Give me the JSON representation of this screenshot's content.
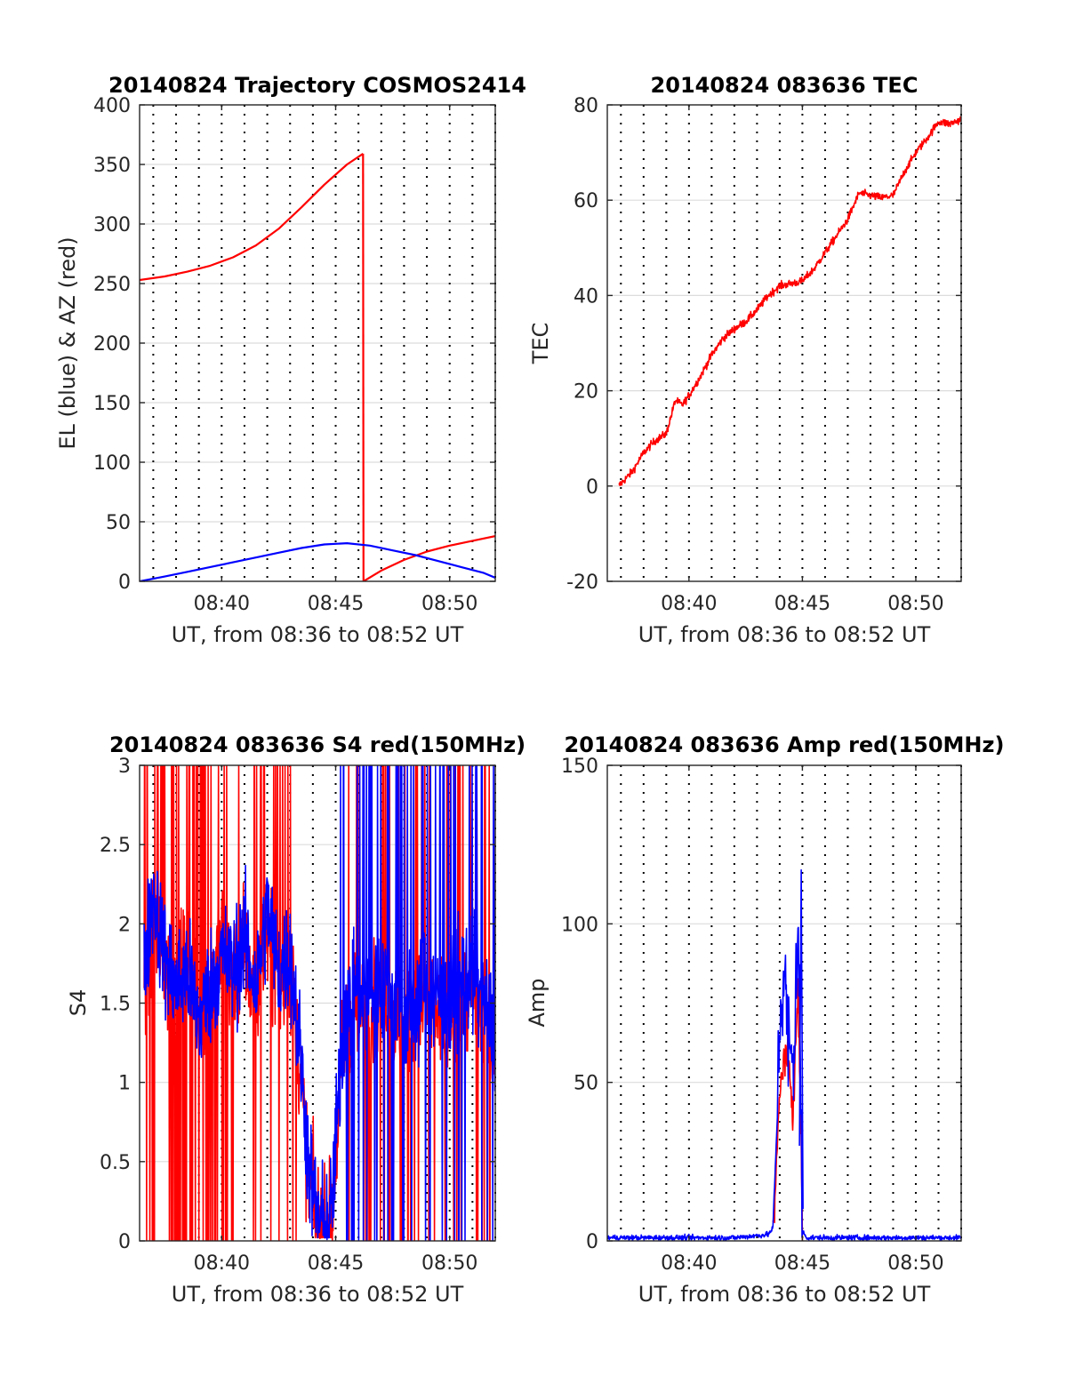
{
  "figure": {
    "background": "#ffffff"
  },
  "chart_data": [
    {
      "id": "trajectory",
      "type": "line",
      "title": "20140824 Trajectory COSMOS2414",
      "xlabel": "UT, from 08:36 to 08:52 UT",
      "ylabel": "EL (blue) & AZ (red)",
      "xlim_minutes": [
        516.4,
        532.0
      ],
      "ylim": [
        0,
        400
      ],
      "yticks": [
        0,
        50,
        100,
        150,
        200,
        250,
        300,
        350,
        400
      ],
      "yticklabels": [
        "0",
        "50",
        "100",
        "150",
        "200",
        "250",
        "300",
        "350",
        "400"
      ],
      "xticks_minutes": [
        520,
        525,
        530
      ],
      "xticklabels": [
        "08:40",
        "08:45",
        "08:50"
      ],
      "grid": true,
      "series": [
        {
          "color": "#ff0000",
          "style": "smooth",
          "x": [
            516.4,
            517.5,
            518.5,
            519.5,
            520.5,
            521.5,
            522.5,
            523.5,
            524.5,
            525.5,
            526.2
          ],
          "y": [
            253,
            256,
            260,
            265,
            272,
            282,
            296,
            314,
            333,
            350,
            359
          ]
        },
        {
          "color": "#ff0000",
          "style": "smooth",
          "x": [
            526.2,
            526.22
          ],
          "y": [
            359,
            0
          ]
        },
        {
          "color": "#ff0000",
          "style": "smooth",
          "x": [
            526.22,
            527,
            528,
            529,
            530,
            531,
            532
          ],
          "y": [
            0,
            9,
            18,
            25,
            30,
            34,
            38
          ]
        },
        {
          "color": "#0000ff",
          "style": "smooth",
          "x": [
            516.4,
            517.5,
            518.5,
            519.5,
            520.5,
            521.5,
            522.5,
            523.5,
            524.5,
            525.5,
            526.5,
            527.5,
            528.5,
            529.5,
            530.5,
            531.5,
            532
          ],
          "y": [
            0,
            4,
            8,
            12,
            16,
            20,
            24,
            28,
            31,
            32,
            30,
            26,
            22,
            17,
            12,
            7,
            3
          ]
        }
      ]
    },
    {
      "id": "tec",
      "type": "line",
      "title": "20140824 083636 TEC",
      "xlabel": "UT, from 08:36 to 08:52 UT",
      "ylabel": "TEC",
      "xlim_minutes": [
        516.4,
        532.0
      ],
      "ylim": [
        -20,
        80
      ],
      "yticks": [
        -20,
        0,
        20,
        40,
        60,
        80
      ],
      "yticklabels": [
        "-20",
        "0",
        "20",
        "40",
        "60",
        "80"
      ],
      "xticks_minutes": [
        520,
        525,
        530
      ],
      "xticklabels": [
        "08:40",
        "08:45",
        "08:50"
      ],
      "grid": true,
      "series": [
        {
          "color": "#ff0000",
          "style": "noisy",
          "noise": 0.8,
          "x": [
            516.9,
            517.5,
            518,
            518.5,
            519,
            519.4,
            519.7,
            520,
            520.5,
            521,
            521.5,
            522,
            522.5,
            523,
            523.5,
            524,
            524.5,
            525,
            525.5,
            526,
            526.5,
            527,
            527.5,
            528,
            528.5,
            529,
            529.5,
            530,
            530.5,
            531,
            531.5,
            532
          ],
          "y": [
            0,
            3,
            7,
            9.5,
            11,
            18,
            17,
            19,
            23,
            27.5,
            31,
            33,
            34.5,
            37,
            40,
            42,
            42.5,
            43,
            45.5,
            49,
            52.5,
            56,
            61.5,
            61,
            60.5,
            61,
            66,
            70,
            73,
            76.5,
            76,
            77
          ]
        }
      ]
    },
    {
      "id": "s4",
      "type": "line",
      "title": "20140824 083636 S4 red(150MHz)",
      "xlabel": "UT, from 08:36 to 08:52 UT",
      "ylabel": "S4",
      "xlim_minutes": [
        516.4,
        532.0
      ],
      "ylim": [
        0,
        3
      ],
      "yticks": [
        0,
        0.5,
        1,
        1.5,
        2,
        2.5,
        3
      ],
      "yticklabels": [
        "0",
        "0.5",
        "1",
        "1.5",
        "2",
        "2.5",
        "3"
      ],
      "xticks_minutes": [
        520,
        525,
        530
      ],
      "xticklabels": [
        "08:40",
        "08:45",
        "08:50"
      ],
      "grid": true,
      "series": [
        {
          "color": "#ff0000",
          "style": "spiky",
          "x": [
            516.6,
            517,
            517.5,
            518,
            518.5,
            519,
            519.5,
            520,
            520.5,
            521,
            521.5,
            522,
            522.5,
            523,
            523.5,
            523.8,
            524.2,
            524.5,
            524.8,
            525,
            525.3,
            525.8,
            526.5,
            527,
            528,
            529,
            530,
            531,
            532
          ],
          "y": [
            1.5,
            2.0,
            1.8,
            1.6,
            1.8,
            1.5,
            1.6,
            1.9,
            1.7,
            1.8,
            1.5,
            2.0,
            1.6,
            1.7,
            1.0,
            0.4,
            0.12,
            0.08,
            0.1,
            0.5,
            1.2,
            1.5,
            1.4,
            1.6,
            1.3,
            1.5,
            1.4,
            1.6,
            1.2
          ],
          "spike_windows": [
            [
              516.6,
              520.2
            ],
            [
              520.2,
              523.3
            ],
            [
              525.5,
              532
            ]
          ],
          "spike_density": [
            0.9,
            0.45,
            0.35
          ]
        },
        {
          "color": "#0000ff",
          "style": "spiky",
          "x": [
            516.6,
            517,
            517.5,
            518,
            518.5,
            519,
            519.5,
            520,
            520.5,
            521,
            521.5,
            522,
            522.5,
            523,
            523.5,
            523.8,
            524.2,
            524.5,
            524.8,
            525,
            525.3,
            525.8,
            526.5,
            527,
            528,
            529,
            530,
            531,
            532
          ],
          "y": [
            1.7,
            2.2,
            1.8,
            1.6,
            1.7,
            1.4,
            1.6,
            1.8,
            1.7,
            1.9,
            1.6,
            2.1,
            1.7,
            1.8,
            1.1,
            0.5,
            0.14,
            0.1,
            0.15,
            0.6,
            1.3,
            1.6,
            1.5,
            1.7,
            1.4,
            1.6,
            1.5,
            1.7,
            1.3
          ],
          "spike_windows": [
            [
              525.2,
              532
            ]
          ],
          "spike_density": [
            0.55
          ]
        }
      ]
    },
    {
      "id": "amp",
      "type": "line",
      "title": "20140824 083636 Amp red(150MHz)",
      "xlabel": "UT, from 08:36 to 08:52 UT",
      "ylabel": "Amp",
      "xlim_minutes": [
        516.4,
        532.0
      ],
      "ylim": [
        0,
        150
      ],
      "yticks": [
        0,
        50,
        100,
        150
      ],
      "yticklabels": [
        "0",
        "50",
        "100",
        "150"
      ],
      "xticks_minutes": [
        520,
        525,
        530
      ],
      "xticklabels": [
        "08:40",
        "08:45",
        "08:50"
      ],
      "grid": true,
      "series": [
        {
          "color": "#ff0000",
          "style": "noisy",
          "noise": 6,
          "x": [
            523.7,
            523.9,
            524.0,
            524.2,
            524.4,
            524.6,
            524.8,
            524.9,
            525.0
          ],
          "y": [
            2,
            30,
            45,
            60,
            55,
            40,
            80,
            50,
            2
          ]
        },
        {
          "color": "#0000ff",
          "style": "noisy",
          "noise": 0.8,
          "x": [
            516.4,
            518,
            520,
            522,
            523.5,
            523.7,
            523.9,
            524.0,
            524.2,
            524.4,
            524.6,
            524.8,
            524.9,
            525.0,
            525.2,
            527,
            529,
            531,
            532
          ],
          "y": [
            1,
            1,
            1,
            1,
            2,
            4,
            40,
            70,
            85,
            60,
            55,
            100,
            60,
            3,
            1,
            1,
            1,
            1,
            1
          ],
          "burst_window": [
            523.9,
            525.0
          ],
          "burst_noise": 18,
          "peak": {
            "x": 524.95,
            "y": 117
          }
        }
      ]
    }
  ]
}
